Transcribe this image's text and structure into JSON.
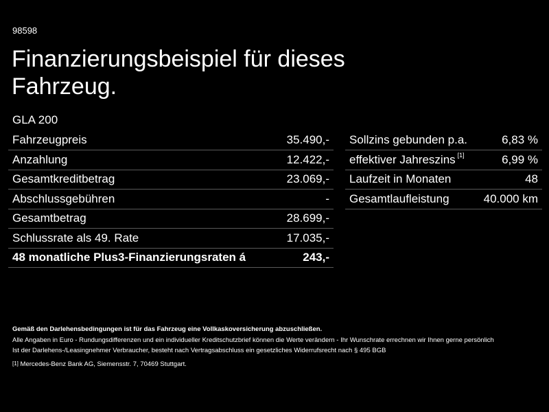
{
  "header": {
    "id": "98598",
    "title_lines": [
      "Finanzierungsbeispiel für dieses",
      "Fahrzeug."
    ],
    "model": "GLA 200"
  },
  "left_table": {
    "rows": [
      [
        "Fahrzeugpreis",
        "35.490,-"
      ],
      [
        "Anzahlung",
        "12.422,-"
      ],
      [
        "Gesamtkreditbetrag",
        "23.069,-"
      ],
      [
        "Abschlussgebühren",
        "-"
      ],
      [
        "Gesamtbetrag",
        "28.699,-"
      ],
      [
        "Schlussrate als 49. Rate",
        "17.035,-"
      ],
      [
        "48 monatliche Plus3-Finanzierungsraten á",
        "243,-"
      ]
    ]
  },
  "right_table": {
    "rows": [
      {
        "label": "Sollzins gebunden p.a.",
        "value": "6,83 %"
      },
      {
        "label": "effektiver Jahreszins",
        "note": "[1]",
        "value": "6,99 %"
      },
      {
        "label": "Laufzeit in Monaten",
        "value": "48"
      },
      {
        "label": "Gesamtlaufleistung",
        "value": "40.000 km"
      }
    ]
  },
  "footer": {
    "bold_line": "Gemäß den Darlehensbedingungen ist für das Fahrzeug eine Vollkaskoversicherung abzuschließen.",
    "lines": [
      "Alle Angaben in Euro - Rundungsdifferenzen und ein individueller Kreditschutzbrief können die Werte verändern - Ihr Wunschrate errechnen wir Ihnen gerne persönlich",
      "Ist der Darlehens-/Leasingnehmer Verbraucher, besteht nach Vertragsabschluss ein gesetzliches Widerrufsrecht nach § 495 BGB"
    ],
    "note_mark": "[1]",
    "note_text": "Mercedes-Benz Bank AG, Siemensstr. 7, 70469 Stuttgart."
  }
}
